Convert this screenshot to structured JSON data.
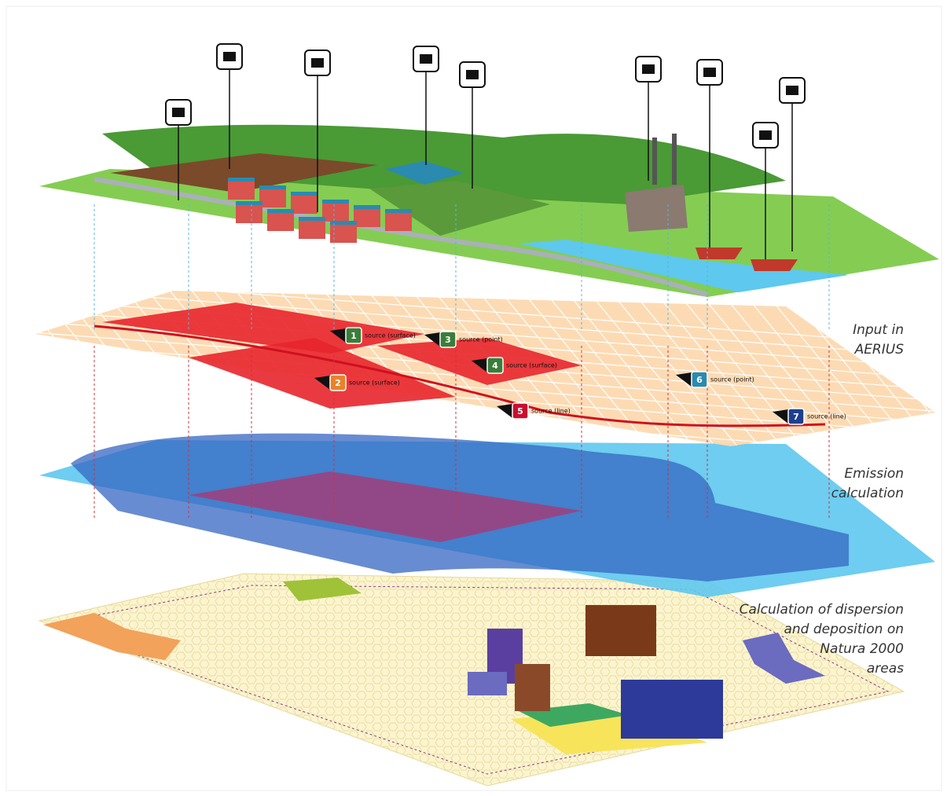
{
  "layers": [
    {
      "label": [
        "Input in",
        "AERIUS"
      ]
    },
    {
      "label": [
        "Emission",
        "calculation"
      ]
    },
    {
      "label": [
        "Calculation of dispersion",
        "and deposition on",
        "Natura 2000",
        "areas"
      ]
    }
  ],
  "sources": [
    {
      "number": "1",
      "label": "source (surface)",
      "color": "#3a7d3a"
    },
    {
      "number": "2",
      "label": "source (surface)",
      "color": "#e8822a"
    },
    {
      "number": "3",
      "label": "source (point)",
      "color": "#3a7d3a"
    },
    {
      "number": "4",
      "label": "source (surface)",
      "color": "#3a7d3a"
    },
    {
      "number": "5",
      "label": "source (line)",
      "color": "#c8102e"
    },
    {
      "number": "6",
      "label": "source (point)",
      "color": "#2a8ab0"
    },
    {
      "number": "7",
      "label": "source (line)",
      "color": "#1d3f8f"
    }
  ]
}
